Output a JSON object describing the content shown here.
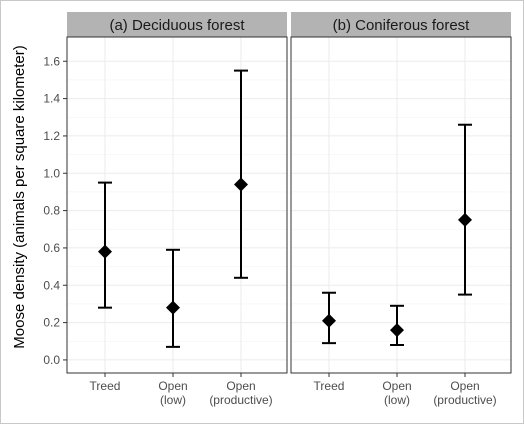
{
  "chart_data": {
    "type": "scatter",
    "ylabel": "Moose density (animals per square kilometer)",
    "xlabel": "",
    "ylim": [
      -0.07,
      1.73
    ],
    "yticks": [
      "0.0",
      "0.2",
      "0.4",
      "0.6",
      "0.8",
      "1.0",
      "1.2",
      "1.4",
      "1.6"
    ],
    "categories": [
      [
        "Treed"
      ],
      [
        "Open",
        "(low)"
      ],
      [
        "Open",
        "(productive)"
      ]
    ],
    "grid": true,
    "panels": [
      {
        "title": "(a) Deciduous forest",
        "estimate": [
          0.58,
          0.28,
          0.94
        ],
        "lower": [
          0.28,
          0.07,
          0.44
        ],
        "upper": [
          0.95,
          0.59,
          1.55
        ]
      },
      {
        "title": "(b) Coniferous forest",
        "estimate": [
          0.21,
          0.16,
          0.75
        ],
        "lower": [
          0.09,
          0.08,
          0.35
        ],
        "upper": [
          0.36,
          0.29,
          1.26
        ]
      }
    ]
  },
  "colors": {
    "strip": "#b3b3b3",
    "points": "#000000",
    "grid": "#ebebeb"
  }
}
